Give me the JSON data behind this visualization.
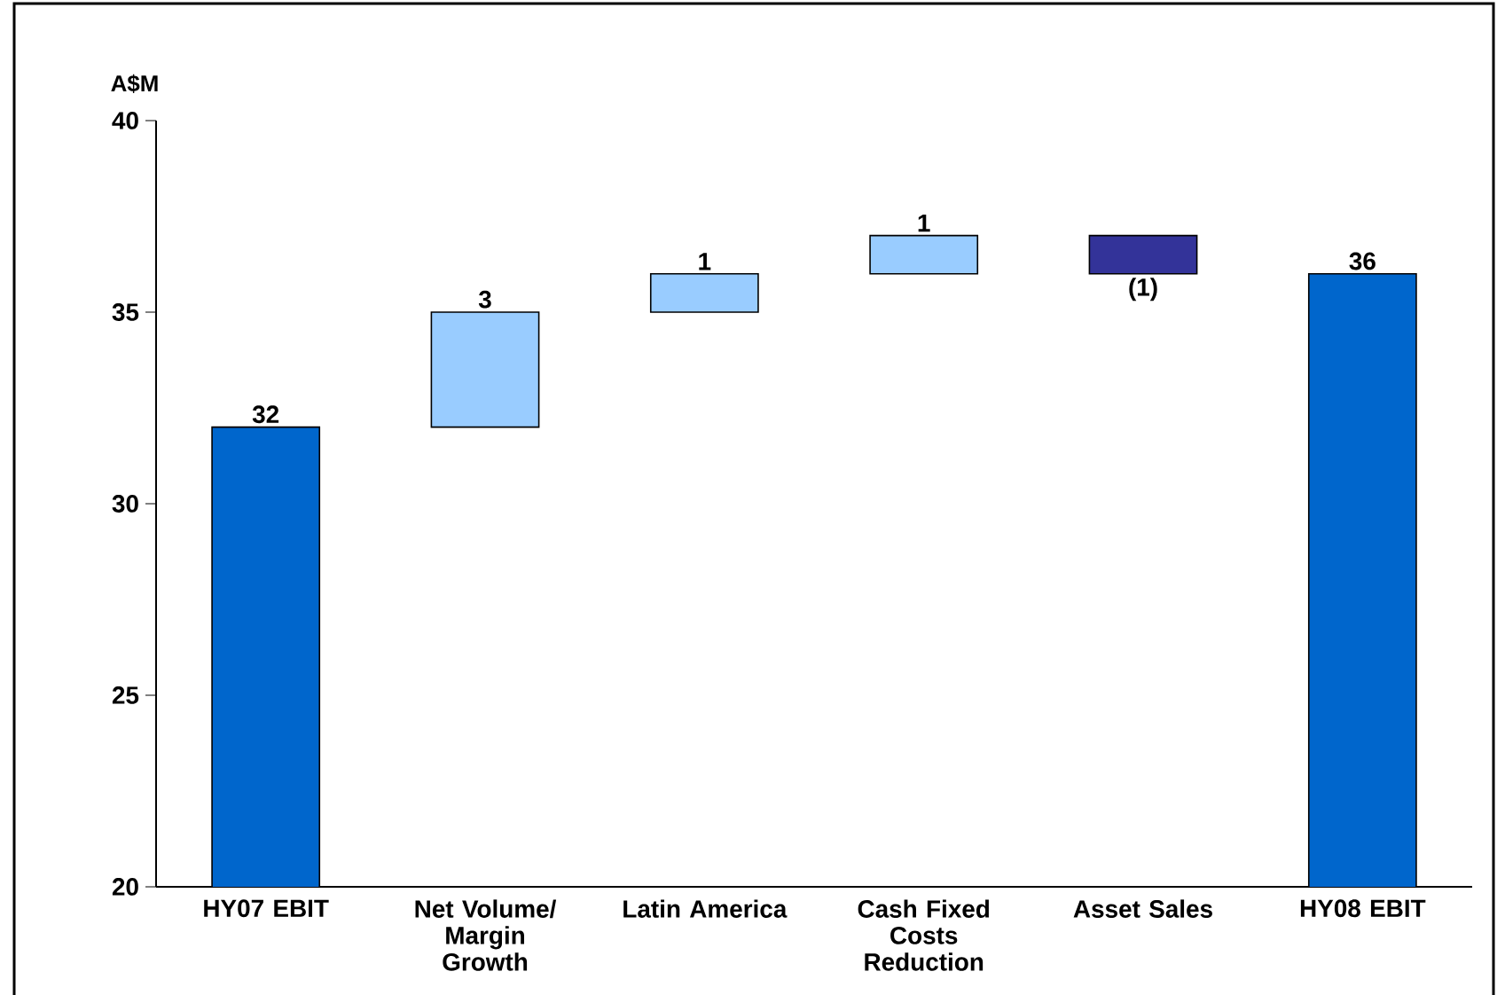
{
  "chart_data": {
    "type": "bar",
    "ylabel": "A$M",
    "categories": [
      "HY07 EBIT",
      "Net Volume/ Margin Growth",
      "Latin America",
      "Cash Fixed Costs Reduction",
      "Asset Sales",
      "HY08 EBIT"
    ],
    "values": [
      32,
      3,
      1,
      1,
      -1,
      36
    ],
    "base": [
      null,
      32,
      35,
      36,
      37,
      null
    ],
    "colors": [
      "#0066cc",
      "#99ccff",
      "#99ccff",
      "#99ccff",
      "#333399",
      "#0066cc"
    ],
    "value_labels": [
      "32",
      "3",
      "1",
      "1",
      "(1)",
      "36"
    ],
    "ylim": [
      20,
      40
    ],
    "yticks": [
      20,
      25,
      30,
      35,
      40
    ]
  }
}
